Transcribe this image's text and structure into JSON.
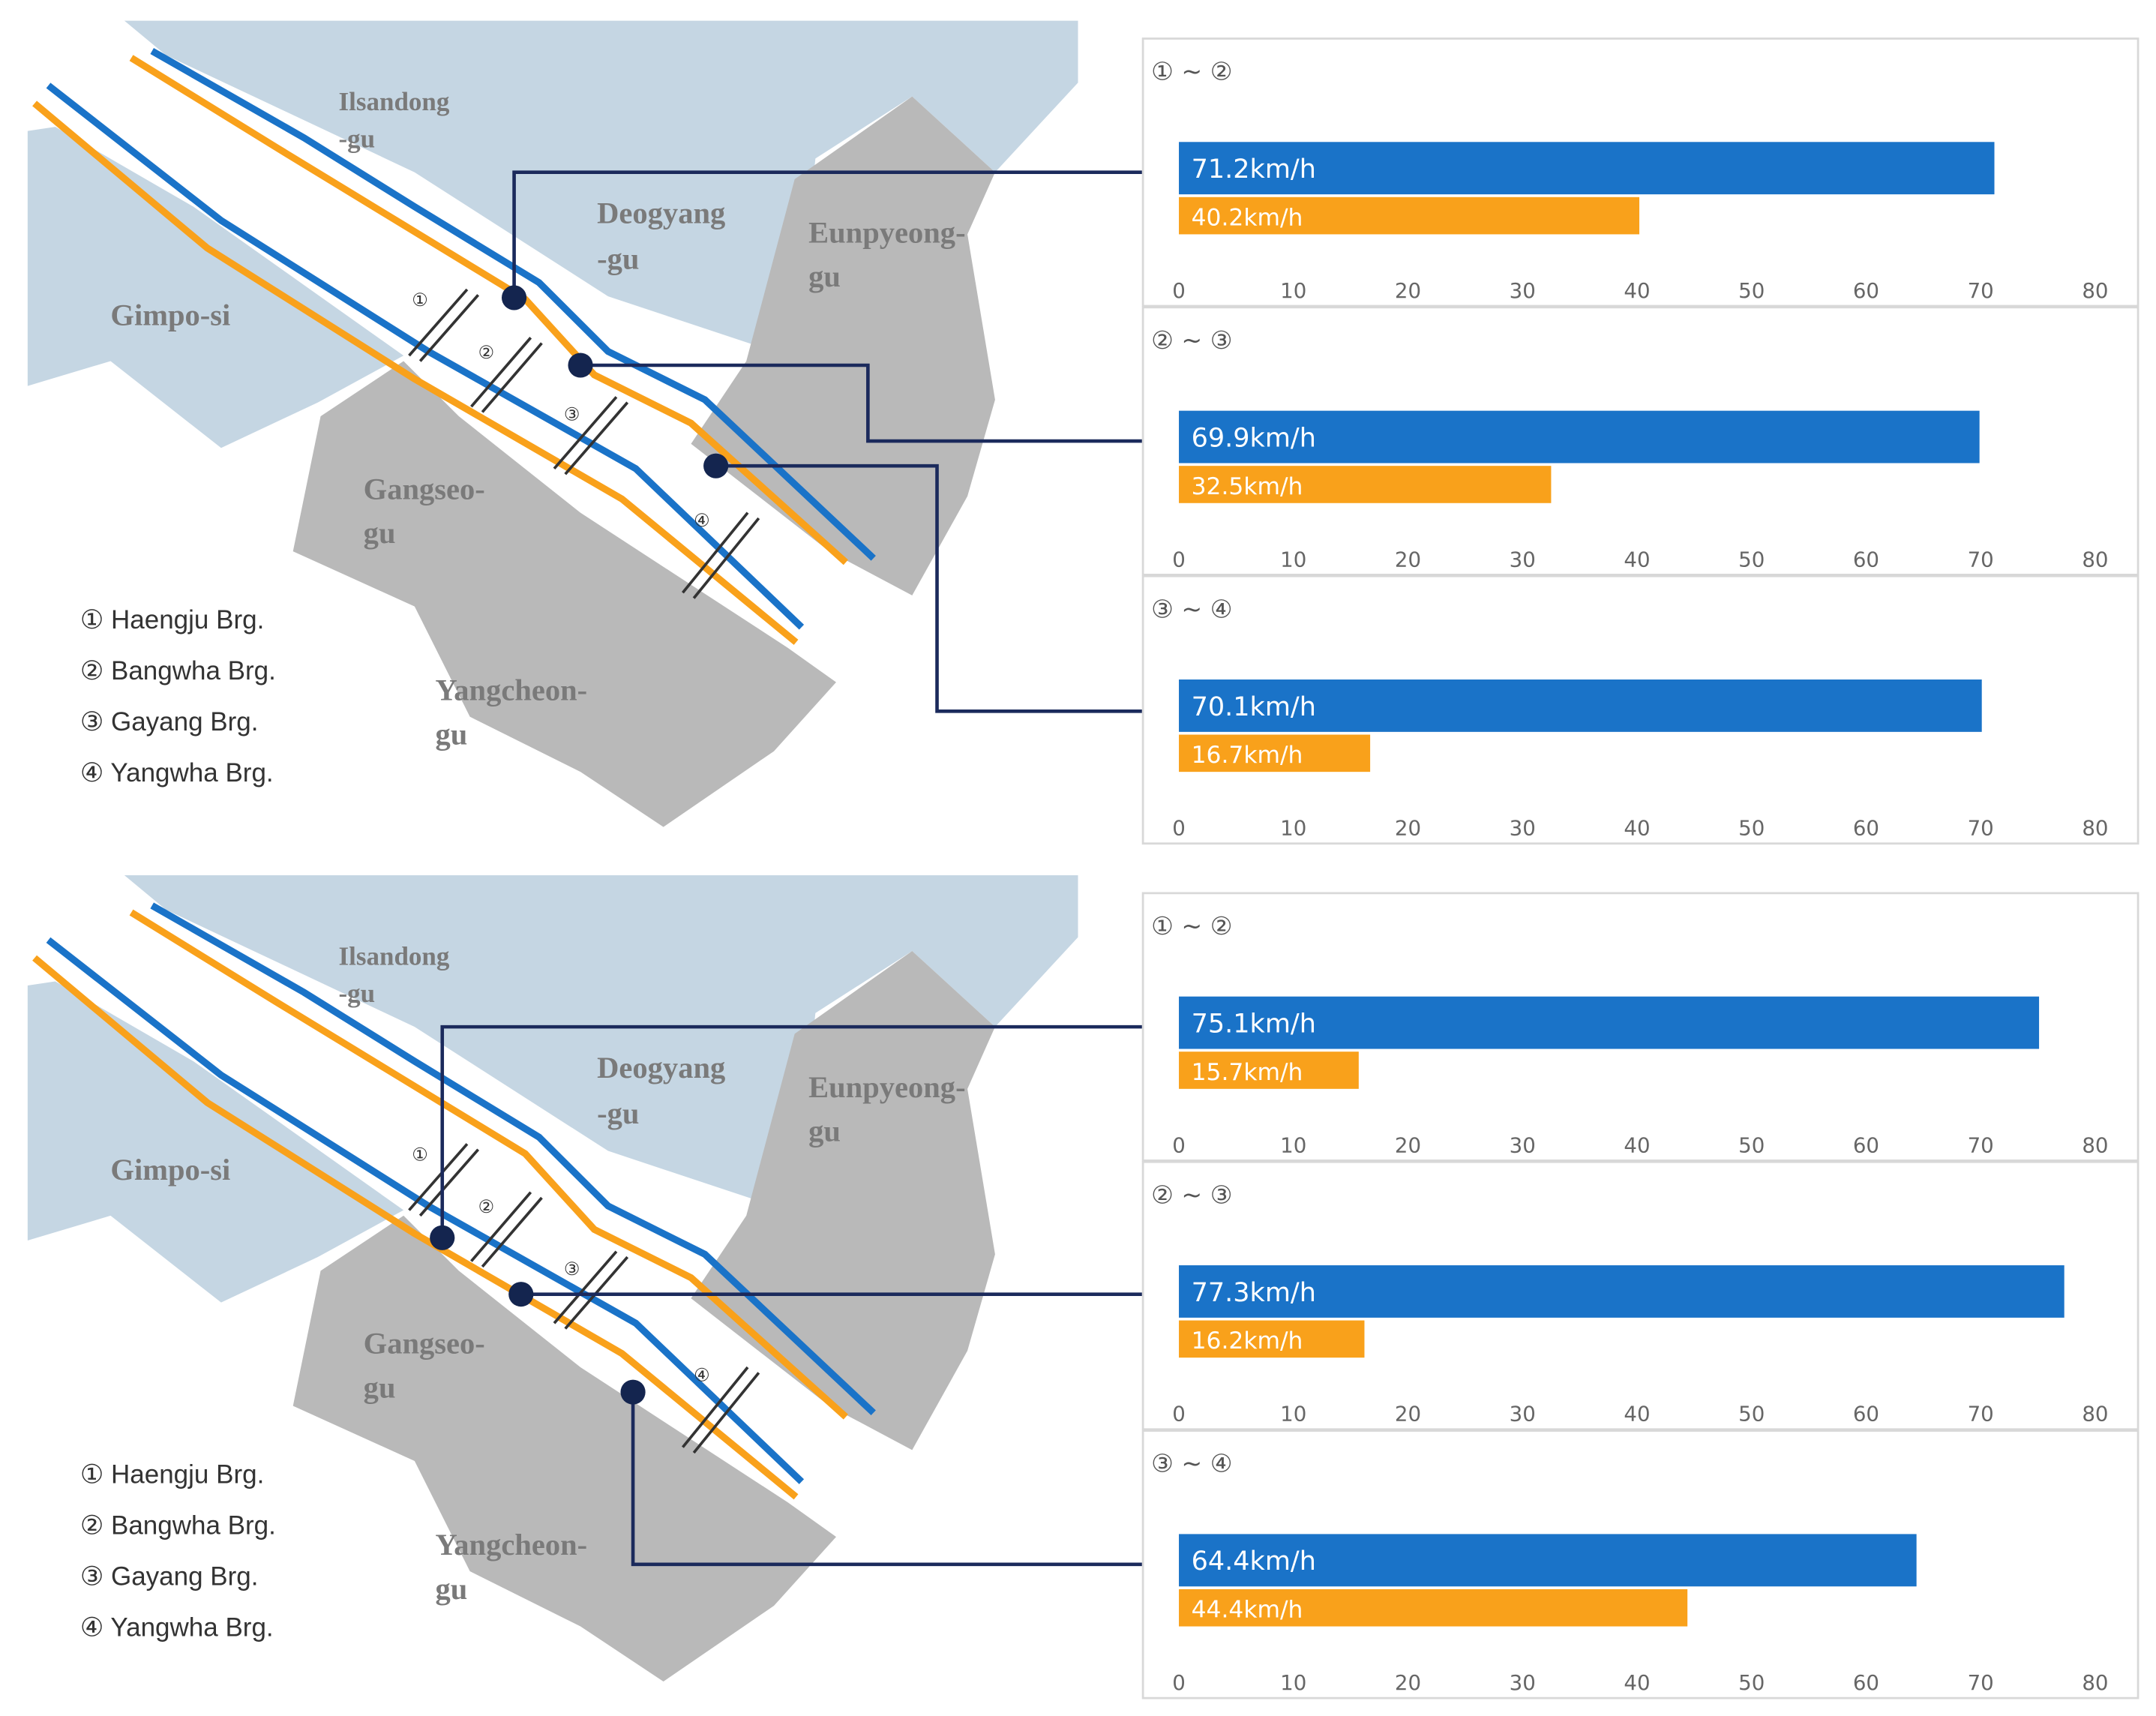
{
  "chart_data": [
    {
      "type": "bar",
      "orientation": "horizontal",
      "title": "① ~ ②",
      "series": [
        {
          "color": "#1a73c8",
          "values": [
            71.2
          ],
          "value_labels": [
            "71.2km/h"
          ]
        },
        {
          "color": "#f9a11b",
          "values": [
            40.2
          ],
          "value_labels": [
            "40.2km/h"
          ]
        }
      ],
      "xlim": [
        0,
        80
      ],
      "xticks": [
        0,
        10,
        20,
        30,
        40,
        50,
        60,
        70,
        80
      ],
      "grid": false
    },
    {
      "type": "bar",
      "orientation": "horizontal",
      "title": "② ~ ③",
      "series": [
        {
          "color": "#1a73c8",
          "values": [
            69.9
          ],
          "value_labels": [
            "69.9km/h"
          ]
        },
        {
          "color": "#f9a11b",
          "values": [
            32.5
          ],
          "value_labels": [
            "32.5km/h"
          ]
        }
      ],
      "xlim": [
        0,
        80
      ],
      "xticks": [
        0,
        10,
        20,
        30,
        40,
        50,
        60,
        70,
        80
      ],
      "grid": false
    },
    {
      "type": "bar",
      "orientation": "horizontal",
      "title": "③ ~ ④",
      "series": [
        {
          "color": "#1a73c8",
          "values": [
            70.1
          ],
          "value_labels": [
            "70.1km/h"
          ]
        },
        {
          "color": "#f9a11b",
          "values": [
            16.7
          ],
          "value_labels": [
            "16.7km/h"
          ]
        }
      ],
      "xlim": [
        0,
        80
      ],
      "xticks": [
        0,
        10,
        20,
        30,
        40,
        50,
        60,
        70,
        80
      ],
      "grid": false
    },
    {
      "type": "bar",
      "orientation": "horizontal",
      "title": "① ~ ②",
      "series": [
        {
          "color": "#1a73c8",
          "values": [
            75.1
          ],
          "value_labels": [
            "75.1km/h"
          ]
        },
        {
          "color": "#f9a11b",
          "values": [
            15.7
          ],
          "value_labels": [
            "15.7km/h"
          ]
        }
      ],
      "xlim": [
        0,
        80
      ],
      "xticks": [
        0,
        10,
        20,
        30,
        40,
        50,
        60,
        70,
        80
      ],
      "grid": false
    },
    {
      "type": "bar",
      "orientation": "horizontal",
      "title": "② ~ ③",
      "series": [
        {
          "color": "#1a73c8",
          "values": [
            77.3
          ],
          "value_labels": [
            "77.3km/h"
          ]
        },
        {
          "color": "#f9a11b",
          "values": [
            16.2
          ],
          "value_labels": [
            "16.2km/h"
          ]
        }
      ],
      "xlim": [
        0,
        80
      ],
      "xticks": [
        0,
        10,
        20,
        30,
        40,
        50,
        60,
        70,
        80
      ],
      "grid": false
    },
    {
      "type": "bar",
      "orientation": "horizontal",
      "title": "③ ~ ④",
      "series": [
        {
          "color": "#1a73c8",
          "values": [
            64.4
          ],
          "value_labels": [
            "64.4km/h"
          ]
        },
        {
          "color": "#f9a11b",
          "values": [
            44.4
          ],
          "value_labels": [
            "44.4km/h"
          ]
        }
      ],
      "xlim": [
        0,
        80
      ],
      "xticks": [
        0,
        10,
        20,
        30,
        40,
        50,
        60,
        70,
        80
      ],
      "grid": false
    }
  ],
  "maps": [
    {
      "labels": [
        {
          "lines": [
            "Ilsandong",
            "-gu"
          ]
        },
        {
          "lines": [
            "Deogyang",
            "-gu"
          ]
        },
        {
          "lines": [
            "Eunpyeong-",
            "gu"
          ]
        },
        {
          "lines": [
            "Gimpo-si"
          ]
        },
        {
          "lines": [
            "Gangseo-",
            "gu"
          ]
        },
        {
          "lines": [
            "Yangcheon-",
            "gu"
          ]
        }
      ],
      "bridge_numbers": [
        "①",
        "②",
        "③",
        "④"
      ],
      "legend": [
        "① Haengju Brg.",
        "② Bangwha Brg.",
        "③ Gayang Brg.",
        "④ Yangwha Brg."
      ]
    },
    {
      "labels": [
        {
          "lines": [
            "Ilsandong",
            "-gu"
          ]
        },
        {
          "lines": [
            "Deogyang",
            "-gu"
          ]
        },
        {
          "lines": [
            "Eunpyeong-",
            "gu"
          ]
        },
        {
          "lines": [
            "Gimpo-si"
          ]
        },
        {
          "lines": [
            "Gangseo-",
            "gu"
          ]
        },
        {
          "lines": [
            "Yangcheon-",
            "gu"
          ]
        }
      ],
      "bridge_numbers": [
        "①",
        "②",
        "③",
        "④"
      ],
      "legend": [
        "① Haengju Brg.",
        "② Bangwha Brg.",
        "③ Gayang Brg.",
        "④ Yangwha Brg."
      ]
    }
  ]
}
